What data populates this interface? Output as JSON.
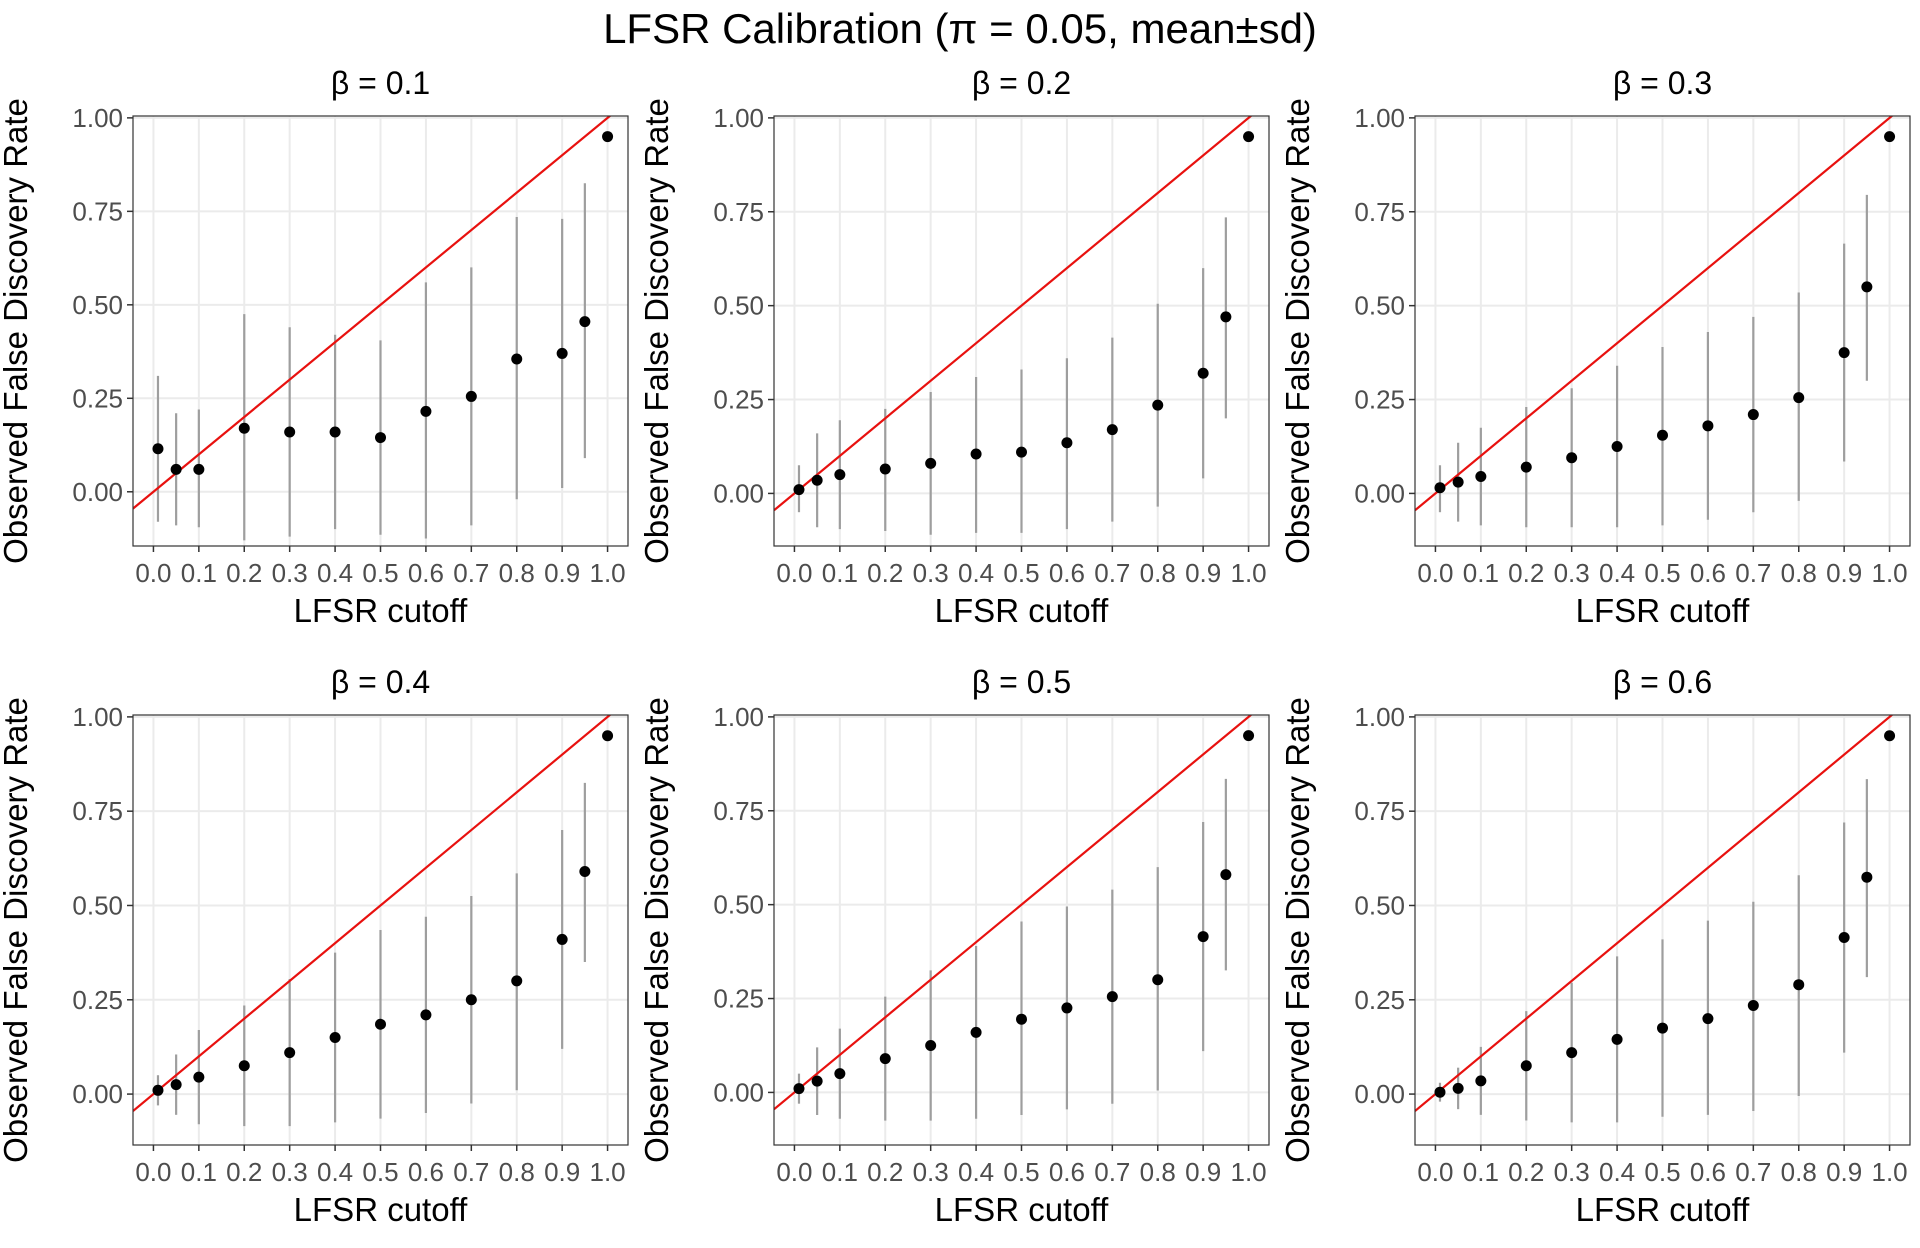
{
  "title": "LFSR Calibration (π = 0.05, mean±sd)",
  "colors": {
    "reference_line": "#e8110f",
    "point": "#000000",
    "errorbar": "#9e9e9e",
    "grid": "#ebebeb",
    "panel_border": "#333333"
  },
  "chart_data": [
    {
      "type": "scatter",
      "title": "β = 0.1",
      "xlabel": "LFSR cutoff",
      "ylabel": "Observed False Discovery Rate",
      "xticks": [
        "0.0",
        "0.1",
        "0.2",
        "0.3",
        "0.4",
        "0.5",
        "0.6",
        "0.7",
        "0.8",
        "0.9",
        "1.0"
      ],
      "yticks": [
        "0.00",
        "0.25",
        "0.50",
        "0.75",
        "1.00"
      ],
      "xlim": [
        -0.045,
        1.045
      ],
      "ylim": [
        -0.145,
        1.005
      ],
      "grid": true,
      "reference_line": "y = x",
      "points": [
        {
          "x": 0.01,
          "mean": 0.115,
          "lo": -0.08,
          "hi": 0.31
        },
        {
          "x": 0.05,
          "mean": 0.06,
          "lo": -0.09,
          "hi": 0.21
        },
        {
          "x": 0.1,
          "mean": 0.06,
          "lo": -0.095,
          "hi": 0.22
        },
        {
          "x": 0.2,
          "mean": 0.17,
          "lo": -0.13,
          "hi": 0.475
        },
        {
          "x": 0.3,
          "mean": 0.16,
          "lo": -0.12,
          "hi": 0.44
        },
        {
          "x": 0.4,
          "mean": 0.16,
          "lo": -0.1,
          "hi": 0.42
        },
        {
          "x": 0.5,
          "mean": 0.145,
          "lo": -0.115,
          "hi": 0.405
        },
        {
          "x": 0.6,
          "mean": 0.215,
          "lo": -0.125,
          "hi": 0.56
        },
        {
          "x": 0.7,
          "mean": 0.255,
          "lo": -0.09,
          "hi": 0.6
        },
        {
          "x": 0.8,
          "mean": 0.355,
          "lo": -0.02,
          "hi": 0.735
        },
        {
          "x": 0.9,
          "mean": 0.37,
          "lo": 0.01,
          "hi": 0.73
        },
        {
          "x": 0.95,
          "mean": 0.455,
          "lo": 0.09,
          "hi": 0.825
        },
        {
          "x": 1.0,
          "mean": 0.95,
          "lo": 0.95,
          "hi": 0.95
        }
      ]
    },
    {
      "type": "scatter",
      "title": "β = 0.2",
      "xlabel": "LFSR cutoff",
      "ylabel": "Observed False Discovery Rate",
      "xticks": [
        "0.0",
        "0.1",
        "0.2",
        "0.3",
        "0.4",
        "0.5",
        "0.6",
        "0.7",
        "0.8",
        "0.9",
        "1.0"
      ],
      "yticks": [
        "0.00",
        "0.25",
        "0.50",
        "0.75",
        "1.00"
      ],
      "xlim": [
        -0.045,
        1.045
      ],
      "ylim": [
        -0.14,
        1.005
      ],
      "grid": true,
      "reference_line": "y = x",
      "points": [
        {
          "x": 0.01,
          "mean": 0.01,
          "lo": -0.05,
          "hi": 0.075
        },
        {
          "x": 0.05,
          "mean": 0.035,
          "lo": -0.09,
          "hi": 0.16
        },
        {
          "x": 0.1,
          "mean": 0.05,
          "lo": -0.095,
          "hi": 0.195
        },
        {
          "x": 0.2,
          "mean": 0.065,
          "lo": -0.1,
          "hi": 0.225
        },
        {
          "x": 0.3,
          "mean": 0.08,
          "lo": -0.11,
          "hi": 0.27
        },
        {
          "x": 0.4,
          "mean": 0.105,
          "lo": -0.105,
          "hi": 0.31
        },
        {
          "x": 0.5,
          "mean": 0.11,
          "lo": -0.105,
          "hi": 0.33
        },
        {
          "x": 0.6,
          "mean": 0.135,
          "lo": -0.095,
          "hi": 0.36
        },
        {
          "x": 0.7,
          "mean": 0.17,
          "lo": -0.075,
          "hi": 0.415
        },
        {
          "x": 0.8,
          "mean": 0.235,
          "lo": -0.035,
          "hi": 0.505
        },
        {
          "x": 0.9,
          "mean": 0.32,
          "lo": 0.04,
          "hi": 0.6
        },
        {
          "x": 0.95,
          "mean": 0.47,
          "lo": 0.2,
          "hi": 0.735
        },
        {
          "x": 1.0,
          "mean": 0.95,
          "lo": 0.95,
          "hi": 0.95
        }
      ]
    },
    {
      "type": "scatter",
      "title": "β = 0.3",
      "xlabel": "LFSR cutoff",
      "ylabel": "Observed False Discovery Rate",
      "xticks": [
        "0.0",
        "0.1",
        "0.2",
        "0.3",
        "0.4",
        "0.5",
        "0.6",
        "0.7",
        "0.8",
        "0.9",
        "1.0"
      ],
      "yticks": [
        "0.00",
        "0.25",
        "0.50",
        "0.75",
        "1.00"
      ],
      "xlim": [
        -0.045,
        1.045
      ],
      "ylim": [
        -0.14,
        1.005
      ],
      "grid": true,
      "reference_line": "y = x",
      "points": [
        {
          "x": 0.01,
          "mean": 0.015,
          "lo": -0.05,
          "hi": 0.075
        },
        {
          "x": 0.05,
          "mean": 0.03,
          "lo": -0.075,
          "hi": 0.135
        },
        {
          "x": 0.1,
          "mean": 0.045,
          "lo": -0.085,
          "hi": 0.175
        },
        {
          "x": 0.2,
          "mean": 0.07,
          "lo": -0.09,
          "hi": 0.23
        },
        {
          "x": 0.3,
          "mean": 0.095,
          "lo": -0.09,
          "hi": 0.28
        },
        {
          "x": 0.4,
          "mean": 0.125,
          "lo": -0.09,
          "hi": 0.34
        },
        {
          "x": 0.5,
          "mean": 0.155,
          "lo": -0.085,
          "hi": 0.39
        },
        {
          "x": 0.6,
          "mean": 0.18,
          "lo": -0.07,
          "hi": 0.43
        },
        {
          "x": 0.7,
          "mean": 0.21,
          "lo": -0.05,
          "hi": 0.47
        },
        {
          "x": 0.8,
          "mean": 0.255,
          "lo": -0.02,
          "hi": 0.535
        },
        {
          "x": 0.9,
          "mean": 0.375,
          "lo": 0.085,
          "hi": 0.665
        },
        {
          "x": 0.95,
          "mean": 0.55,
          "lo": 0.3,
          "hi": 0.795
        },
        {
          "x": 1.0,
          "mean": 0.95,
          "lo": 0.95,
          "hi": 0.95
        }
      ]
    },
    {
      "type": "scatter",
      "title": "β = 0.4",
      "xlabel": "LFSR cutoff",
      "ylabel": "Observed False Discovery Rate",
      "xticks": [
        "0.0",
        "0.1",
        "0.2",
        "0.3",
        "0.4",
        "0.5",
        "0.6",
        "0.7",
        "0.8",
        "0.9",
        "1.0"
      ],
      "yticks": [
        "0.00",
        "0.25",
        "0.50",
        "0.75",
        "1.00"
      ],
      "xlim": [
        -0.045,
        1.045
      ],
      "ylim": [
        -0.135,
        1.005
      ],
      "grid": true,
      "reference_line": "y = x",
      "points": [
        {
          "x": 0.01,
          "mean": 0.01,
          "lo": -0.03,
          "hi": 0.05
        },
        {
          "x": 0.05,
          "mean": 0.025,
          "lo": -0.055,
          "hi": 0.105
        },
        {
          "x": 0.1,
          "mean": 0.045,
          "lo": -0.08,
          "hi": 0.17
        },
        {
          "x": 0.2,
          "mean": 0.075,
          "lo": -0.085,
          "hi": 0.235
        },
        {
          "x": 0.3,
          "mean": 0.11,
          "lo": -0.085,
          "hi": 0.305
        },
        {
          "x": 0.4,
          "mean": 0.15,
          "lo": -0.075,
          "hi": 0.375
        },
        {
          "x": 0.5,
          "mean": 0.185,
          "lo": -0.065,
          "hi": 0.435
        },
        {
          "x": 0.6,
          "mean": 0.21,
          "lo": -0.05,
          "hi": 0.47
        },
        {
          "x": 0.7,
          "mean": 0.25,
          "lo": -0.025,
          "hi": 0.525
        },
        {
          "x": 0.8,
          "mean": 0.3,
          "lo": 0.01,
          "hi": 0.585
        },
        {
          "x": 0.9,
          "mean": 0.41,
          "lo": 0.12,
          "hi": 0.7
        },
        {
          "x": 0.95,
          "mean": 0.59,
          "lo": 0.35,
          "hi": 0.825
        },
        {
          "x": 1.0,
          "mean": 0.95,
          "lo": 0.95,
          "hi": 0.95
        }
      ]
    },
    {
      "type": "scatter",
      "title": "β = 0.5",
      "xlabel": "LFSR cutoff",
      "ylabel": "Observed False Discovery Rate",
      "xticks": [
        "0.0",
        "0.1",
        "0.2",
        "0.3",
        "0.4",
        "0.5",
        "0.6",
        "0.7",
        "0.8",
        "0.9",
        "1.0"
      ],
      "yticks": [
        "0.00",
        "0.25",
        "0.50",
        "0.75",
        "1.00"
      ],
      "xlim": [
        -0.045,
        1.045
      ],
      "ylim": [
        -0.14,
        1.005
      ],
      "grid": true,
      "reference_line": "y = x",
      "points": [
        {
          "x": 0.01,
          "mean": 0.01,
          "lo": -0.03,
          "hi": 0.05
        },
        {
          "x": 0.05,
          "mean": 0.03,
          "lo": -0.06,
          "hi": 0.12
        },
        {
          "x": 0.1,
          "mean": 0.05,
          "lo": -0.07,
          "hi": 0.17
        },
        {
          "x": 0.2,
          "mean": 0.09,
          "lo": -0.075,
          "hi": 0.255
        },
        {
          "x": 0.3,
          "mean": 0.125,
          "lo": -0.075,
          "hi": 0.325
        },
        {
          "x": 0.4,
          "mean": 0.16,
          "lo": -0.07,
          "hi": 0.39
        },
        {
          "x": 0.5,
          "mean": 0.195,
          "lo": -0.06,
          "hi": 0.455
        },
        {
          "x": 0.6,
          "mean": 0.225,
          "lo": -0.045,
          "hi": 0.495
        },
        {
          "x": 0.7,
          "mean": 0.255,
          "lo": -0.03,
          "hi": 0.54
        },
        {
          "x": 0.8,
          "mean": 0.3,
          "lo": 0.005,
          "hi": 0.6
        },
        {
          "x": 0.9,
          "mean": 0.415,
          "lo": 0.11,
          "hi": 0.72
        },
        {
          "x": 0.95,
          "mean": 0.58,
          "lo": 0.325,
          "hi": 0.835
        },
        {
          "x": 1.0,
          "mean": 0.95,
          "lo": 0.95,
          "hi": 0.95
        }
      ]
    },
    {
      "type": "scatter",
      "title": "β = 0.6",
      "xlabel": "LFSR cutoff",
      "ylabel": "Observed False Discovery Rate",
      "xticks": [
        "0.0",
        "0.1",
        "0.2",
        "0.3",
        "0.4",
        "0.5",
        "0.6",
        "0.7",
        "0.8",
        "0.9",
        "1.0"
      ],
      "yticks": [
        "0.00",
        "0.25",
        "0.50",
        "0.75",
        "1.00"
      ],
      "xlim": [
        -0.045,
        1.045
      ],
      "ylim": [
        -0.135,
        1.005
      ],
      "grid": true,
      "reference_line": "y = x",
      "points": [
        {
          "x": 0.01,
          "mean": 0.005,
          "lo": -0.02,
          "hi": 0.03
        },
        {
          "x": 0.05,
          "mean": 0.015,
          "lo": -0.04,
          "hi": 0.07
        },
        {
          "x": 0.1,
          "mean": 0.035,
          "lo": -0.055,
          "hi": 0.125
        },
        {
          "x": 0.2,
          "mean": 0.075,
          "lo": -0.07,
          "hi": 0.22
        },
        {
          "x": 0.3,
          "mean": 0.11,
          "lo": -0.075,
          "hi": 0.295
        },
        {
          "x": 0.4,
          "mean": 0.145,
          "lo": -0.075,
          "hi": 0.365
        },
        {
          "x": 0.5,
          "mean": 0.175,
          "lo": -0.06,
          "hi": 0.41
        },
        {
          "x": 0.6,
          "mean": 0.2,
          "lo": -0.055,
          "hi": 0.46
        },
        {
          "x": 0.7,
          "mean": 0.235,
          "lo": -0.045,
          "hi": 0.51
        },
        {
          "x": 0.8,
          "mean": 0.29,
          "lo": -0.005,
          "hi": 0.58
        },
        {
          "x": 0.9,
          "mean": 0.415,
          "lo": 0.11,
          "hi": 0.72
        },
        {
          "x": 0.95,
          "mean": 0.575,
          "lo": 0.31,
          "hi": 0.835
        },
        {
          "x": 1.0,
          "mean": 0.95,
          "lo": 0.95,
          "hi": 0.95
        }
      ]
    }
  ]
}
